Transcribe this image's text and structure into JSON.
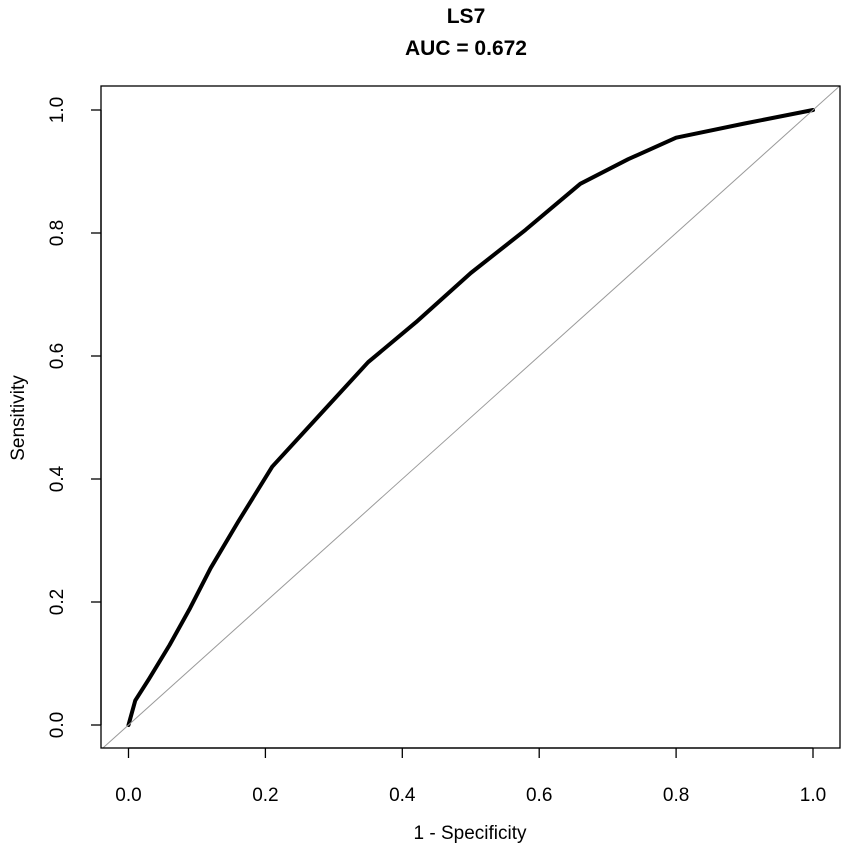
{
  "chart_data": {
    "type": "line",
    "title": "LS7",
    "subtitle": "AUC = 0.672",
    "xlabel": "1 - Specificity",
    "ylabel": "Sensitivity",
    "xlim": [
      -0.04,
      1.04
    ],
    "ylim": [
      -0.04,
      1.04
    ],
    "x_ticks": [
      "0.0",
      "0.2",
      "0.4",
      "0.6",
      "0.8",
      "1.0"
    ],
    "y_ticks": [
      "0.0",
      "0.2",
      "0.4",
      "0.6",
      "0.8",
      "1.0"
    ],
    "grid": false,
    "series": [
      {
        "type": "line",
        "color": "#000000",
        "points": [
          [
            0.0,
            0.0
          ],
          [
            0.01,
            0.04
          ],
          [
            0.03,
            0.075
          ],
          [
            0.06,
            0.13
          ],
          [
            0.09,
            0.19
          ],
          [
            0.12,
            0.255
          ],
          [
            0.16,
            0.33
          ],
          [
            0.21,
            0.42
          ],
          [
            0.28,
            0.505
          ],
          [
            0.35,
            0.59
          ],
          [
            0.42,
            0.655
          ],
          [
            0.5,
            0.735
          ],
          [
            0.58,
            0.805
          ],
          [
            0.66,
            0.88
          ],
          [
            0.73,
            0.92
          ],
          [
            0.8,
            0.955
          ],
          [
            0.9,
            0.978
          ],
          [
            1.0,
            1.0
          ]
        ]
      },
      {
        "type": "reference-diagonal",
        "color": "#9a9a9a",
        "points": [
          [
            -0.04,
            -0.04
          ],
          [
            1.04,
            1.04
          ]
        ]
      }
    ]
  }
}
